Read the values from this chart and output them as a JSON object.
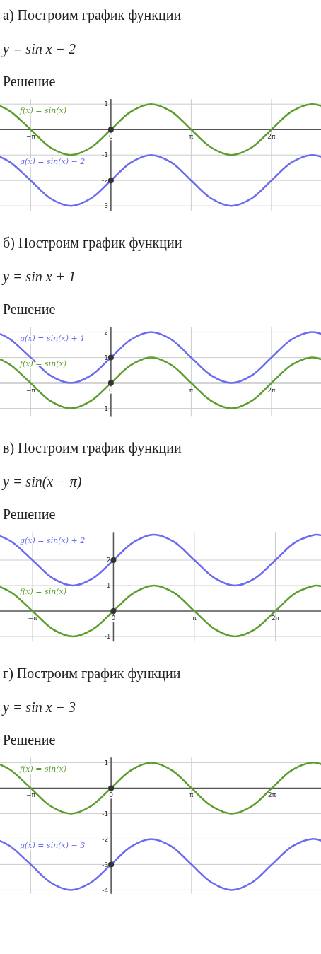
{
  "chart_data": [
    {
      "type": "line",
      "title": "а) Построим график функции",
      "subtitle": "y = sin x − 2",
      "annotations": [
        "Решение"
      ],
      "x": [
        -4.32,
        -3.93,
        -3.14,
        -2.36,
        -1.57,
        -0.79,
        0,
        0.79,
        1.57,
        2.36,
        3.14,
        3.93,
        4.71,
        5.5,
        6.28,
        7.07,
        7.85,
        8.2
      ],
      "xlim": [
        -4.34,
        8.22
      ],
      "ylim": [
        -3.2,
        1.2
      ],
      "xticks": [
        {
          "value": -3.14,
          "label": "−π"
        },
        {
          "value": 0,
          "label": "0"
        },
        {
          "value": 3.14,
          "label": "π"
        },
        {
          "value": 6.28,
          "label": "2π"
        }
      ],
      "yticks": [
        -3,
        -2,
        -1,
        1
      ],
      "grid": true,
      "series": [
        {
          "name": "f(x) = sin(x)",
          "color": "#5c9e2e",
          "values": [
            0.92,
            0.71,
            0,
            -0.71,
            -1,
            -0.71,
            0,
            0.71,
            1,
            0.71,
            0,
            -0.71,
            -1,
            -0.71,
            0,
            0.71,
            1,
            0.94
          ]
        },
        {
          "name": "g(x) = sin(x) − 2",
          "color": "#6b6bf0",
          "values": [
            -1.08,
            -1.29,
            -2,
            -2.71,
            -3,
            -2.71,
            -2,
            -1.29,
            -1,
            -1.29,
            -2,
            -2.71,
            -3,
            -2.71,
            -2,
            -1.29,
            -1,
            -1.06
          ]
        },
        {
          "type": "scatter",
          "color": "#333333",
          "values": [
            null,
            null,
            null,
            null,
            null,
            null,
            0,
            null,
            null,
            null,
            null,
            null,
            null,
            null,
            null,
            null,
            null,
            null
          ]
        },
        {
          "type": "scatter",
          "color": "#333333",
          "values": [
            null,
            null,
            null,
            null,
            null,
            null,
            -2,
            null,
            null,
            null,
            null,
            null,
            null,
            null,
            null,
            null,
            null,
            null
          ]
        }
      ]
    },
    {
      "type": "line",
      "title": "б) Построим график функции",
      "subtitle": "y = sin x + 1",
      "annotations": [
        "Решение"
      ],
      "x": [
        -4.32,
        -3.93,
        -3.14,
        -2.36,
        -1.57,
        -0.79,
        0,
        0.79,
        1.57,
        2.36,
        3.14,
        3.93,
        4.71,
        5.5,
        6.28,
        7.07,
        7.85,
        8.2
      ],
      "xlim": [
        -4.34,
        8.22
      ],
      "ylim": [
        -1.3,
        2.2
      ],
      "xticks": [
        {
          "value": -3.14,
          "label": "−π"
        },
        {
          "value": 0,
          "label": "0"
        },
        {
          "value": 3.14,
          "label": "π"
        },
        {
          "value": 6.28,
          "label": "2π"
        }
      ],
      "yticks": [
        -1,
        1,
        2
      ],
      "grid": true,
      "series": [
        {
          "name": "g(x) = sin(x) + 1",
          "color": "#6b6bf0",
          "values": [
            1.92,
            1.71,
            1,
            0.29,
            0,
            0.29,
            1,
            1.71,
            2,
            1.71,
            1,
            0.29,
            0,
            0.29,
            1,
            1.71,
            2,
            1.94
          ]
        },
        {
          "name": "f(x) = sin(x)",
          "color": "#5c9e2e",
          "values": [
            0.92,
            0.71,
            0,
            -0.71,
            -1,
            -0.71,
            0,
            0.71,
            1,
            0.71,
            0,
            -0.71,
            -1,
            -0.71,
            0,
            0.71,
            1,
            0.94
          ]
        },
        {
          "type": "scatter",
          "color": "#333333",
          "values": [
            null,
            null,
            null,
            null,
            null,
            null,
            1,
            null,
            null,
            null,
            null,
            null,
            null,
            null,
            null,
            null,
            null,
            null
          ]
        },
        {
          "type": "scatter",
          "color": "#333333",
          "values": [
            null,
            null,
            null,
            null,
            null,
            null,
            0,
            null,
            null,
            null,
            null,
            null,
            null,
            null,
            null,
            null,
            null,
            null
          ]
        }
      ]
    },
    {
      "type": "line",
      "title": "в) Построим график функции",
      "subtitle": "y = sin(x − π)",
      "annotations": [
        "Решение"
      ],
      "x": [
        -4.4,
        -3.93,
        -3.14,
        -2.36,
        -1.57,
        -0.79,
        0,
        0.79,
        1.57,
        2.36,
        3.14,
        3.93,
        4.71,
        5.5,
        6.28,
        7.07,
        7.85,
        8.03
      ],
      "xlim": [
        -4.4,
        8.05
      ],
      "ylim": [
        -1.2,
        3.1
      ],
      "xticks": [
        {
          "value": -3.14,
          "label": "−π"
        },
        {
          "value": 0,
          "label": "0"
        },
        {
          "value": 3.14,
          "label": "π"
        },
        {
          "value": 6.28,
          "label": "2π"
        }
      ],
      "yticks": [
        -1,
        1,
        2
      ],
      "grid": true,
      "series": [
        {
          "name": "g(x) = sin(x) + 2",
          "color": "#6b6bf0",
          "values": [
            2.95,
            2.71,
            2,
            1.29,
            1,
            1.29,
            2,
            2.71,
            3,
            2.71,
            2,
            1.29,
            1,
            1.29,
            2,
            2.71,
            3,
            2.98
          ]
        },
        {
          "name": "f(x) = sin(x)",
          "color": "#5c9e2e",
          "values": [
            0.95,
            0.71,
            0,
            -0.71,
            -1,
            -0.71,
            0,
            0.71,
            1,
            0.71,
            0,
            -0.71,
            -1,
            -0.71,
            0,
            0.71,
            1,
            0.98
          ]
        },
        {
          "type": "scatter",
          "color": "#333333",
          "values": [
            null,
            null,
            null,
            null,
            null,
            null,
            2,
            null,
            null,
            null,
            null,
            null,
            null,
            null,
            null,
            null,
            null,
            null
          ]
        },
        {
          "type": "scatter",
          "color": "#333333",
          "values": [
            null,
            null,
            null,
            null,
            null,
            null,
            0,
            null,
            null,
            null,
            null,
            null,
            null,
            null,
            null,
            null,
            null,
            null
          ]
        }
      ]
    },
    {
      "type": "line",
      "title": "г) Построим график функции",
      "subtitle": "y = sin x − 3",
      "annotations": [
        "Решение"
      ],
      "x": [
        -4.32,
        -3.93,
        -3.14,
        -2.36,
        -1.57,
        -0.79,
        0,
        0.79,
        1.57,
        2.36,
        3.14,
        3.93,
        4.71,
        5.5,
        6.28,
        7.07,
        7.85,
        8.2
      ],
      "xlim": [
        -4.34,
        8.2
      ],
      "ylim": [
        -4.15,
        1.2
      ],
      "xticks": [
        {
          "value": -3.14,
          "label": "−π"
        },
        {
          "value": 0,
          "label": "0"
        },
        {
          "value": 3.14,
          "label": "π"
        },
        {
          "value": 6.28,
          "label": "2π"
        }
      ],
      "yticks": [
        -4,
        -3,
        -2,
        -1,
        1
      ],
      "grid": true,
      "series": [
        {
          "name": "f(x) = sin(x)",
          "color": "#5c9e2e",
          "values": [
            0.92,
            0.71,
            0,
            -0.71,
            -1,
            -0.71,
            0,
            0.71,
            1,
            0.71,
            0,
            -0.71,
            -1,
            -0.71,
            0,
            0.71,
            1,
            0.94
          ]
        },
        {
          "name": "g(x) = sin(x) − 3",
          "color": "#6b6bf0",
          "values": [
            -2.08,
            -2.29,
            -3,
            -3.71,
            -4,
            -3.71,
            -3,
            -2.29,
            -2,
            -2.29,
            -3,
            -3.71,
            -4,
            -3.71,
            -3,
            -2.29,
            -2,
            -2.06
          ]
        },
        {
          "type": "scatter",
          "color": "#333333",
          "values": [
            null,
            null,
            null,
            null,
            null,
            null,
            0,
            null,
            null,
            null,
            null,
            null,
            null,
            null,
            null,
            null,
            null,
            null
          ]
        },
        {
          "type": "scatter",
          "color": "#333333",
          "values": [
            null,
            null,
            null,
            null,
            null,
            null,
            -3,
            null,
            null,
            null,
            null,
            null,
            null,
            null,
            null,
            null,
            null,
            null
          ]
        }
      ]
    }
  ]
}
